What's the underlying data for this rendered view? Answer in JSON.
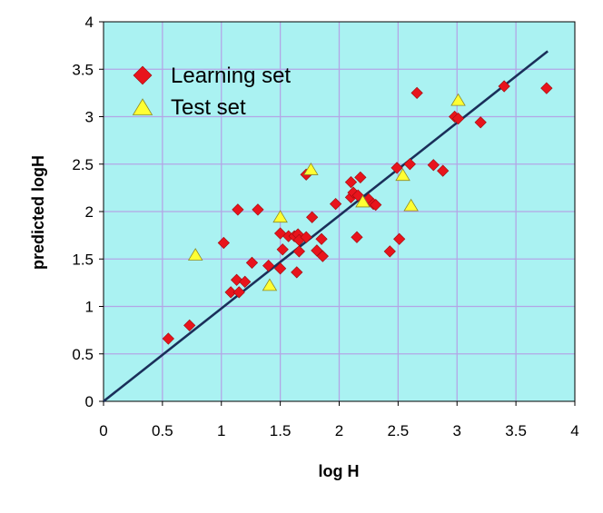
{
  "chart_data": {
    "type": "scatter",
    "xlabel": "log  H",
    "ylabel": "predicted  logH",
    "xlim": [
      0,
      4
    ],
    "ylim": [
      0,
      4
    ],
    "xticks": [
      0,
      0.5,
      1,
      1.5,
      2,
      2.5,
      3,
      3.5,
      4
    ],
    "yticks": [
      0,
      0.5,
      1,
      1.5,
      2,
      2.5,
      3,
      3.5,
      4
    ],
    "xtick_labels": [
      "0",
      "0.5",
      "1",
      "1.5",
      "2",
      "2.5",
      "3",
      "3.5",
      "4"
    ],
    "ytick_labels": [
      "0",
      "0.5",
      "1",
      "1.5",
      "2",
      "2.5",
      "3",
      "3.5",
      "4"
    ],
    "grid": true,
    "legend_position": "top-left",
    "colors": {
      "plot_background": "#aaf2f2",
      "grid": "#b3a6e6",
      "learning_marker": "#e8141c",
      "learning_edge": "#9a0d10",
      "test_marker": "#ffff33",
      "test_edge": "#8a8a2a",
      "fit_line": "#1a2f5a"
    },
    "series": [
      {
        "name": "Learning set",
        "marker": "diamond",
        "points": [
          [
            0.55,
            0.66
          ],
          [
            0.73,
            0.8
          ],
          [
            1.02,
            1.67
          ],
          [
            1.08,
            1.15
          ],
          [
            1.13,
            1.28
          ],
          [
            1.14,
            2.02
          ],
          [
            1.15,
            1.15
          ],
          [
            1.2,
            1.26
          ],
          [
            1.26,
            1.46
          ],
          [
            1.31,
            2.02
          ],
          [
            1.4,
            1.43
          ],
          [
            1.5,
            1.77
          ],
          [
            1.5,
            1.4
          ],
          [
            1.52,
            1.6
          ],
          [
            1.57,
            1.74
          ],
          [
            1.62,
            1.74
          ],
          [
            1.64,
            1.36
          ],
          [
            1.65,
            1.76
          ],
          [
            1.66,
            1.7
          ],
          [
            1.66,
            1.58
          ],
          [
            1.72,
            1.73
          ],
          [
            1.72,
            2.39
          ],
          [
            1.77,
            1.94
          ],
          [
            1.81,
            1.59
          ],
          [
            1.85,
            1.71
          ],
          [
            1.86,
            1.53
          ],
          [
            1.97,
            2.08
          ],
          [
            2.1,
            2.31
          ],
          [
            2.1,
            2.15
          ],
          [
            2.12,
            2.2
          ],
          [
            2.15,
            1.73
          ],
          [
            2.16,
            2.17
          ],
          [
            2.18,
            2.36
          ],
          [
            2.25,
            2.13
          ],
          [
            2.29,
            2.08
          ],
          [
            2.31,
            2.07
          ],
          [
            2.43,
            1.58
          ],
          [
            2.49,
            2.46
          ],
          [
            2.51,
            1.71
          ],
          [
            2.6,
            2.5
          ],
          [
            2.66,
            3.25
          ],
          [
            2.8,
            2.49
          ],
          [
            2.88,
            2.43
          ],
          [
            2.98,
            3.0
          ],
          [
            3.01,
            2.98
          ],
          [
            3.2,
            2.94
          ],
          [
            3.4,
            3.32
          ],
          [
            3.76,
            3.3
          ]
        ]
      },
      {
        "name": "Test set",
        "marker": "triangle",
        "points": [
          [
            0.78,
            1.54
          ],
          [
            1.41,
            1.22
          ],
          [
            1.5,
            1.94
          ],
          [
            1.76,
            2.44
          ],
          [
            2.2,
            2.1
          ],
          [
            2.54,
            2.38
          ],
          [
            2.61,
            2.06
          ],
          [
            3.01,
            3.17
          ]
        ]
      }
    ],
    "fit_line": {
      "x": [
        0,
        3.77
      ],
      "y": [
        0,
        3.69
      ]
    }
  }
}
